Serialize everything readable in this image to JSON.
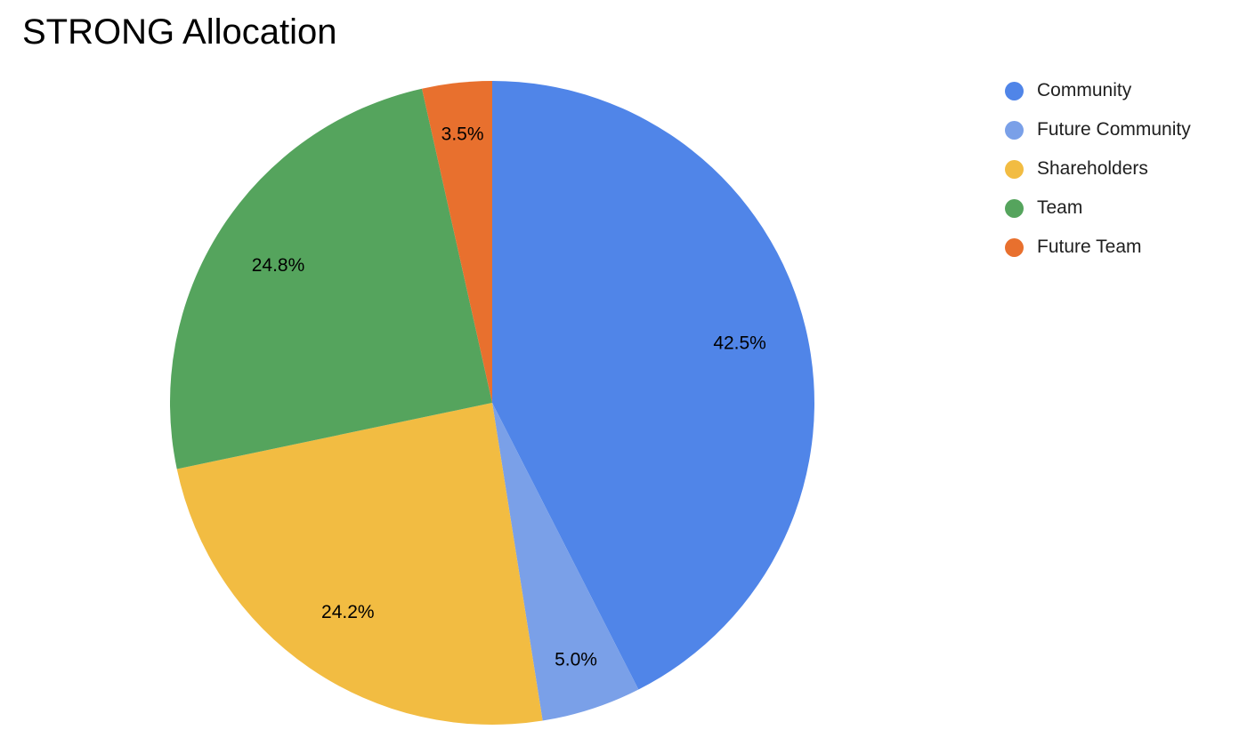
{
  "chart_data": {
    "type": "pie",
    "title": "STRONG Allocation",
    "categories": [
      "Community",
      "Future Community",
      "Shareholders",
      "Team",
      "Future Team"
    ],
    "values": [
      42.5,
      5.0,
      24.2,
      24.8,
      3.5
    ],
    "value_labels": [
      "42.5%",
      "5.0%",
      "24.2%",
      "24.8%",
      "3.5%"
    ],
    "colors": [
      "#5085E8",
      "#7AA0E8",
      "#F2BC42",
      "#55A45D",
      "#E8702E"
    ],
    "total": 100,
    "start_angle_deg": 0,
    "direction": "clockwise",
    "legend_position": "right",
    "slice_label_color": "#000000",
    "legend_text_color": "#1f1f1f",
    "background_color": "#ffffff"
  }
}
